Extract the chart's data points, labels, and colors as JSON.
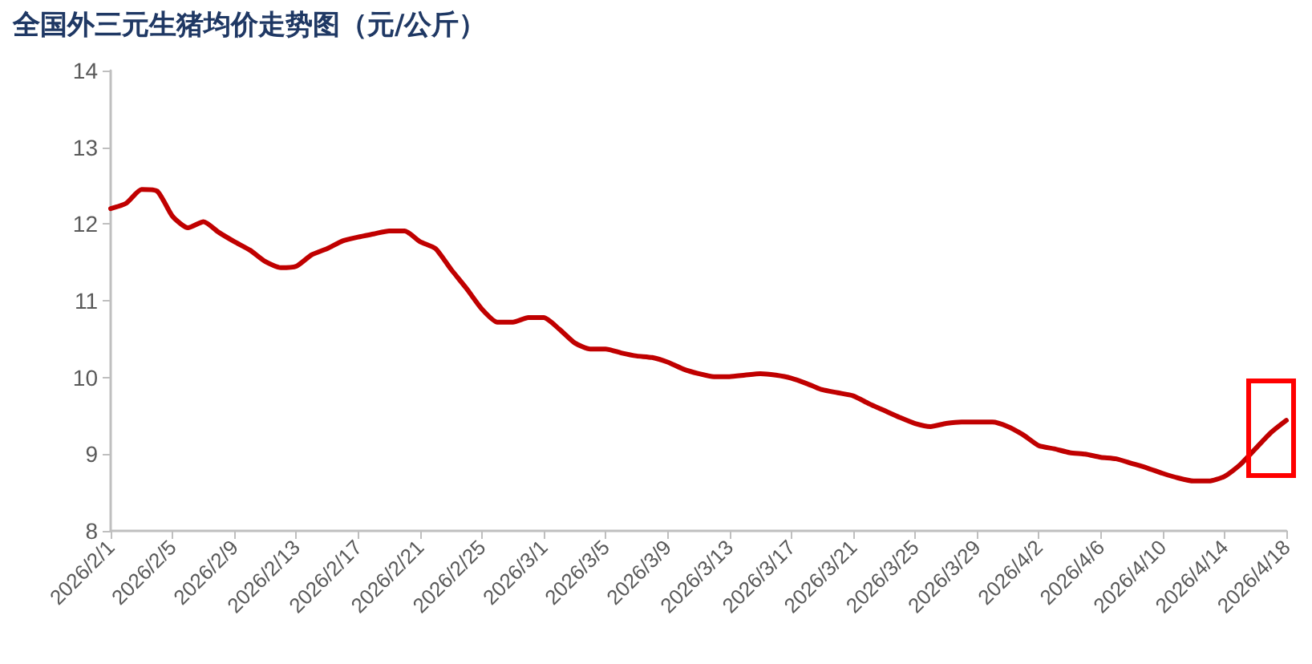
{
  "chart_data": {
    "type": "line",
    "title": "全国外三元生猪均价走势图（元/公斤）",
    "categories": [
      "2026/2/1",
      null,
      null,
      null,
      "2026/2/5",
      null,
      null,
      null,
      "2026/2/9",
      null,
      null,
      null,
      "2026/2/13",
      null,
      null,
      null,
      "2026/2/17",
      null,
      null,
      null,
      "2026/2/21",
      null,
      null,
      null,
      "2026/2/25",
      null,
      null,
      null,
      "2026/3/1",
      null,
      null,
      null,
      "2026/3/5",
      null,
      null,
      null,
      "2026/3/9",
      null,
      null,
      null,
      "2026/3/13",
      null,
      null,
      null,
      "2026/3/17",
      null,
      null,
      null,
      "2026/3/21",
      null,
      null,
      null,
      "2026/3/25",
      null,
      null,
      null,
      "2026/3/29",
      null,
      null,
      null,
      "2026/4/2",
      null,
      null,
      null,
      "2026/4/6",
      null,
      null,
      null,
      "2026/4/10",
      null,
      null,
      null,
      "2026/4/14",
      null,
      null,
      null,
      "2026/4/18"
    ],
    "series": [
      {
        "color": "#c00000",
        "values": [
          12.2,
          12.27,
          12.45,
          12.43,
          12.1,
          11.95,
          12.03,
          11.89,
          11.77,
          11.66,
          11.51,
          11.43,
          11.45,
          11.6,
          11.68,
          11.78,
          11.83,
          11.87,
          11.91,
          11.91,
          11.77,
          11.68,
          11.41,
          11.16,
          10.89,
          10.72,
          10.72,
          10.78,
          10.78,
          10.63,
          10.45,
          10.37,
          10.37,
          10.32,
          10.28,
          10.26,
          10.2,
          10.11,
          10.05,
          10.01,
          10.01,
          10.03,
          10.05,
          10.03,
          9.99,
          9.92,
          9.84,
          9.8,
          9.76,
          9.66,
          9.57,
          9.48,
          9.4,
          9.36,
          9.4,
          9.42,
          9.42,
          9.42,
          9.36,
          9.25,
          9.11,
          9.07,
          9.02,
          9.0,
          8.96,
          8.94,
          8.88,
          8.82,
          8.75,
          8.69,
          8.65,
          8.65,
          8.71,
          8.86,
          9.07,
          9.28,
          9.44
        ]
      }
    ],
    "ylim": [
      8,
      14
    ],
    "yticks": [
      8,
      9,
      10,
      11,
      12,
      13,
      14
    ],
    "grid": false,
    "marker": "none",
    "line_style": "solid"
  }
}
